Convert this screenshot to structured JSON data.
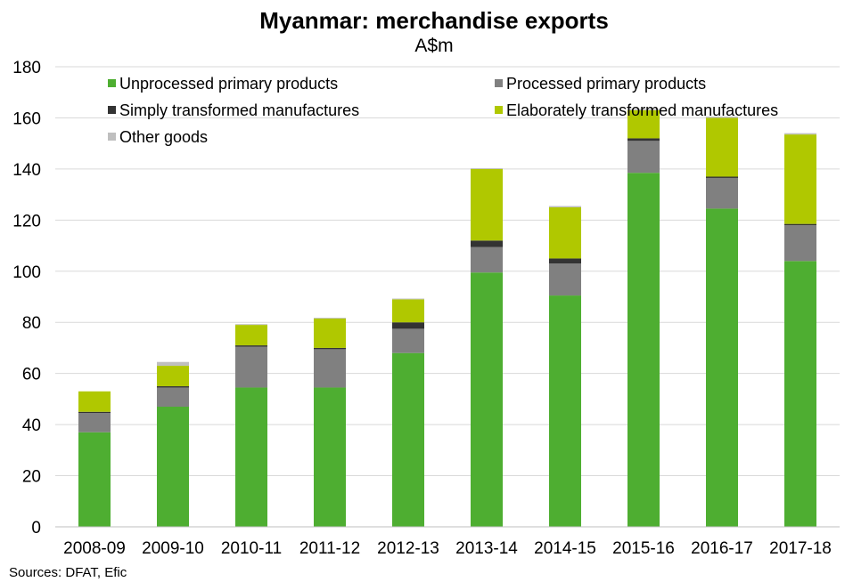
{
  "chart_data": {
    "type": "bar",
    "stacked": true,
    "title": "Myanmar: merchandise exports",
    "subtitle": "A$m",
    "xlabel": "",
    "ylabel": "",
    "ylim": [
      0,
      180
    ],
    "yticks": [
      0,
      20,
      40,
      60,
      80,
      100,
      120,
      140,
      160,
      180
    ],
    "grid": true,
    "legend_position": "top",
    "categories": [
      "2008-09",
      "2009-10",
      "2010-11",
      "2011-12",
      "2012-13",
      "2013-14",
      "2014-15",
      "2015-16",
      "2016-17",
      "2017-18"
    ],
    "series": [
      {
        "name": "Unprocessed primary products",
        "color": "#4eae31",
        "values": [
          37,
          47,
          54.5,
          54.5,
          68,
          99.5,
          90.5,
          138.5,
          124.5,
          104
        ]
      },
      {
        "name": "Processed primary products",
        "color": "#808080",
        "values": [
          7.5,
          7.5,
          16,
          15,
          9.5,
          10,
          12.5,
          12.5,
          12,
          14
        ]
      },
      {
        "name": "Simply transformed manufactures",
        "color": "#333333",
        "values": [
          0.5,
          0.5,
          0.5,
          0.5,
          2.5,
          2.5,
          2,
          1,
          0.5,
          0.5
        ]
      },
      {
        "name": "Elaborately transformed manufactures",
        "color": "#b0c800",
        "values": [
          8,
          8,
          8,
          11.5,
          9,
          28,
          20,
          11,
          23,
          35
        ]
      },
      {
        "name": "Other goods",
        "color": "#bfbfbf",
        "values": [
          0,
          1.5,
          0.3,
          0.3,
          0.3,
          0.3,
          0.5,
          0.5,
          0.5,
          0.5
        ]
      }
    ],
    "source": "Sources: DFAT, Efic"
  }
}
